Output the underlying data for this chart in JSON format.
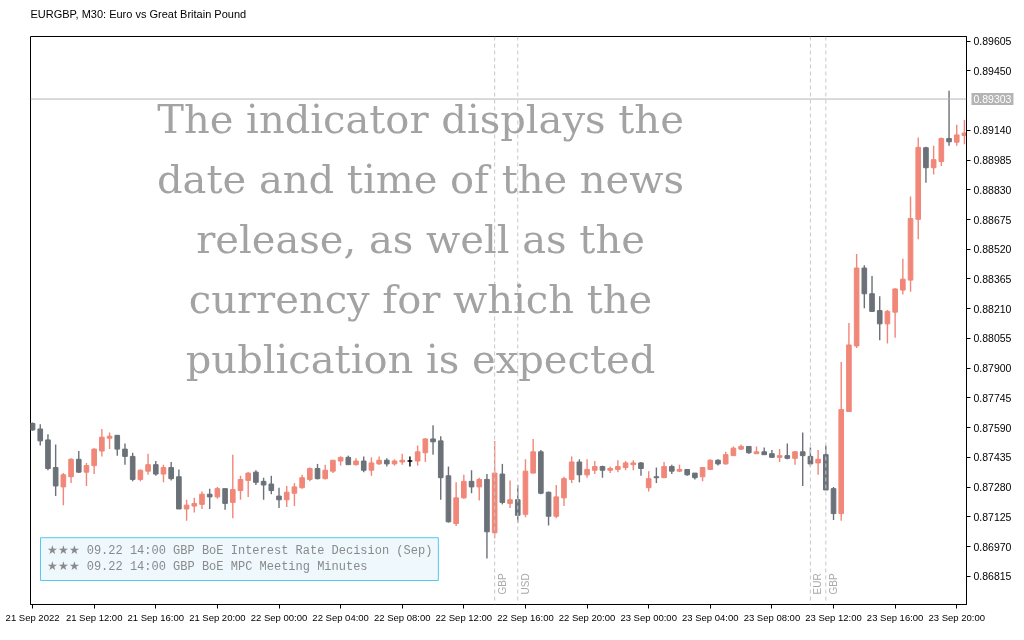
{
  "chart_data": {
    "type": "candlestick",
    "title": "EURGBP, M30: Euro vs Great Britain Pound",
    "annotations": [
      "The indicator displays the date and time of the news release, as well as the currency for which the publication is expected",
      "★★★ 09.22 14:00 GBP BoE Interest Rate Decision (Sep)",
      "★★★ 09.22 14:00 GBP BoE MPC Meeting Minutes"
    ],
    "x": [
      "2022-09-21T08:00",
      "2022-09-21T08:30",
      "2022-09-21T09:00",
      "2022-09-21T09:30",
      "2022-09-21T10:00",
      "2022-09-21T10:30",
      "2022-09-21T11:00",
      "2022-09-21T11:30",
      "2022-09-21T12:00",
      "2022-09-21T12:30",
      "2022-09-21T13:00",
      "2022-09-21T13:30",
      "2022-09-21T14:00",
      "2022-09-21T14:30",
      "2022-09-21T15:00",
      "2022-09-21T15:30",
      "2022-09-21T16:00",
      "2022-09-21T16:30",
      "2022-09-21T17:00",
      "2022-09-21T17:30",
      "2022-09-21T18:00",
      "2022-09-21T18:30",
      "2022-09-21T19:00",
      "2022-09-21T19:30",
      "2022-09-21T20:00",
      "2022-09-21T20:30",
      "2022-09-21T21:00",
      "2022-09-21T21:30",
      "2022-09-21T22:00",
      "2022-09-21T22:30",
      "2022-09-21T23:00",
      "2022-09-21T23:30",
      "2022-09-22T00:00",
      "2022-09-22T00:30",
      "2022-09-22T01:00",
      "2022-09-22T01:30",
      "2022-09-22T02:00",
      "2022-09-22T02:30",
      "2022-09-22T03:00",
      "2022-09-22T03:30",
      "2022-09-22T04:00",
      "2022-09-22T04:30",
      "2022-09-22T05:00",
      "2022-09-22T05:30",
      "2022-09-22T06:00",
      "2022-09-22T06:30",
      "2022-09-22T07:00",
      "2022-09-22T07:30",
      "2022-09-22T08:00",
      "2022-09-22T08:30",
      "2022-09-22T09:00",
      "2022-09-22T09:30",
      "2022-09-22T10:00",
      "2022-09-22T10:30",
      "2022-09-22T11:00",
      "2022-09-22T11:30",
      "2022-09-22T12:00",
      "2022-09-22T12:30",
      "2022-09-22T13:00",
      "2022-09-22T13:30",
      "2022-09-22T14:00",
      "2022-09-22T14:30",
      "2022-09-22T15:00",
      "2022-09-22T15:30",
      "2022-09-22T16:00",
      "2022-09-22T16:30",
      "2022-09-22T17:00",
      "2022-09-22T17:30",
      "2022-09-22T18:00",
      "2022-09-22T18:30",
      "2022-09-22T19:00",
      "2022-09-22T19:30",
      "2022-09-22T20:00",
      "2022-09-22T20:30",
      "2022-09-22T21:00",
      "2022-09-22T21:30",
      "2022-09-22T22:00",
      "2022-09-22T22:30",
      "2022-09-22T23:00",
      "2022-09-22T23:30",
      "2022-09-23T00:00",
      "2022-09-23T00:30",
      "2022-09-23T01:00",
      "2022-09-23T01:30",
      "2022-09-23T02:00",
      "2022-09-23T02:30",
      "2022-09-23T03:00",
      "2022-09-23T03:30",
      "2022-09-23T04:00",
      "2022-09-23T04:30",
      "2022-09-23T05:00",
      "2022-09-23T05:30",
      "2022-09-23T06:00",
      "2022-09-23T06:30",
      "2022-09-23T07:00",
      "2022-09-23T07:30",
      "2022-09-23T08:00",
      "2022-09-23T08:30",
      "2022-09-23T09:00",
      "2022-09-23T09:30",
      "2022-09-23T10:00",
      "2022-09-23T10:30",
      "2022-09-23T11:00",
      "2022-09-23T11:30",
      "2022-09-23T12:00",
      "2022-09-23T12:30",
      "2022-09-23T13:00",
      "2022-09-23T13:30",
      "2022-09-23T14:00",
      "2022-09-23T14:30",
      "2022-09-23T15:00",
      "2022-09-23T15:30",
      "2022-09-23T16:00",
      "2022-09-23T16:30",
      "2022-09-23T17:00",
      "2022-09-23T17:30",
      "2022-09-23T18:00",
      "2022-09-23T18:30",
      "2022-09-23T19:00",
      "2022-09-23T19:30",
      "2022-09-23T20:00",
      "2022-09-23T20:30"
    ],
    "ohlc": [
      [
        0.87612,
        0.87617,
        0.87574,
        0.87578
      ],
      [
        0.87583,
        0.87607,
        0.87497,
        0.87521
      ],
      [
        0.87526,
        0.87555,
        0.87368,
        0.87377
      ],
      [
        0.87382,
        0.87502,
        0.87233,
        0.87286
      ],
      [
        0.87281,
        0.87353,
        0.87186,
        0.87344
      ],
      [
        0.87334,
        0.8743,
        0.87301,
        0.87425
      ],
      [
        0.87425,
        0.87468,
        0.87353,
        0.87358
      ],
      [
        0.87358,
        0.87406,
        0.87286,
        0.87392
      ],
      [
        0.87392,
        0.87483,
        0.87348,
        0.87478
      ],
      [
        0.87468,
        0.87583,
        0.8744,
        0.8754
      ],
      [
        0.87535,
        0.87564,
        0.87478,
        0.87545
      ],
      [
        0.8755,
        0.8755,
        0.87444,
        0.87478
      ],
      [
        0.87478,
        0.87507,
        0.87397,
        0.8744
      ],
      [
        0.8744,
        0.87459,
        0.8731,
        0.8732
      ],
      [
        0.8732,
        0.87372,
        0.8731,
        0.87368
      ],
      [
        0.87363,
        0.87454,
        0.87344,
        0.87397
      ],
      [
        0.87397,
        0.87416,
        0.87339,
        0.87348
      ],
      [
        0.87348,
        0.87397,
        0.87305,
        0.87382
      ],
      [
        0.87382,
        0.87411,
        0.87315,
        0.87324
      ],
      [
        0.87334,
        0.87372,
        0.87166,
        0.87166
      ],
      [
        0.87166,
        0.87214,
        0.87104,
        0.87186
      ],
      [
        0.87181,
        0.87224,
        0.87147,
        0.87195
      ],
      [
        0.8719,
        0.87257,
        0.87166,
        0.87243
      ],
      [
        0.87243,
        0.87272,
        0.87166,
        0.87229
      ],
      [
        0.87229,
        0.87281,
        0.87219,
        0.87272
      ],
      [
        0.87272,
        0.87272,
        0.87162,
        0.87195
      ],
      [
        0.872,
        0.87449,
        0.87118,
        0.87267
      ],
      [
        0.87262,
        0.87339,
        0.87214,
        0.8732
      ],
      [
        0.87315,
        0.87358,
        0.87229,
        0.87353
      ],
      [
        0.87358,
        0.87368,
        0.87291,
        0.87305
      ],
      [
        0.8731,
        0.87329,
        0.87214,
        0.87291
      ],
      [
        0.87296,
        0.87339,
        0.87243,
        0.87262
      ],
      [
        0.87233,
        0.87277,
        0.87171,
        0.87214
      ],
      [
        0.87214,
        0.87286,
        0.87176,
        0.87253
      ],
      [
        0.87248,
        0.87301,
        0.87181,
        0.87281
      ],
      [
        0.87277,
        0.87344,
        0.87272,
        0.87329
      ],
      [
        0.8732,
        0.87382,
        0.8731,
        0.87377
      ],
      [
        0.87377,
        0.87401,
        0.8732,
        0.87324
      ],
      [
        0.87324,
        0.87397,
        0.8732,
        0.87368
      ],
      [
        0.87363,
        0.8742,
        0.87353,
        0.8742
      ],
      [
        0.87416,
        0.8744,
        0.87392,
        0.87435
      ],
      [
        0.87435,
        0.87444,
        0.87397,
        0.87397
      ],
      [
        0.87397,
        0.8743,
        0.87392,
        0.87416
      ],
      [
        0.87416,
        0.8744,
        0.87358,
        0.87368
      ],
      [
        0.87368,
        0.87435,
        0.87339,
        0.87406
      ],
      [
        0.87401,
        0.8744,
        0.87397,
        0.8742
      ],
      [
        0.8742,
        0.8743,
        0.87387,
        0.87401
      ],
      [
        0.87401,
        0.87425,
        0.87392,
        0.87416
      ],
      [
        0.87411,
        0.87454,
        0.87397,
        0.8742
      ],
      [
        0.87416,
        0.8744,
        0.87387,
        0.87416
      ],
      [
        0.87416,
        0.87497,
        0.87392,
        0.87464
      ],
      [
        0.87459,
        0.87535,
        0.87411,
        0.87531
      ],
      [
        0.87531,
        0.87602,
        0.87449,
        0.87516
      ],
      [
        0.87521,
        0.87545,
        0.87214,
        0.87329
      ],
      [
        0.87339,
        0.87387,
        0.87095,
        0.87099
      ],
      [
        0.8709,
        0.87305,
        0.87077,
        0.87224
      ],
      [
        0.87224,
        0.87344,
        0.87219,
        0.8731
      ],
      [
        0.8731,
        0.87368,
        0.87248,
        0.87281
      ],
      [
        0.87281,
        0.87329,
        0.8721,
        0.8732
      ],
      [
        0.8732,
        0.87348,
        0.86908,
        0.87047
      ],
      [
        0.87042,
        0.87521,
        0.87013,
        0.87353
      ],
      [
        0.87348,
        0.87401,
        0.8719,
        0.872
      ],
      [
        0.87195,
        0.87315,
        0.87171,
        0.87214
      ],
      [
        0.87214,
        0.87291,
        0.87095,
        0.87133
      ],
      [
        0.87138,
        0.87425,
        0.87123,
        0.87363
      ],
      [
        0.87353,
        0.87531,
        0.87353,
        0.87464
      ],
      [
        0.87464,
        0.87473,
        0.87243,
        0.87248
      ],
      [
        0.87253,
        0.87257,
        0.8708,
        0.87128
      ],
      [
        0.87128,
        0.87291,
        0.87118,
        0.87229
      ],
      [
        0.87224,
        0.87334,
        0.87181,
        0.87324
      ],
      [
        0.8732,
        0.8744,
        0.87301,
        0.87411
      ],
      [
        0.87411,
        0.87425,
        0.87305,
        0.87344
      ],
      [
        0.87344,
        0.87425,
        0.87329,
        0.87372
      ],
      [
        0.87368,
        0.87416,
        0.87348,
        0.87387
      ],
      [
        0.87387,
        0.87392,
        0.87329,
        0.87368
      ],
      [
        0.87368,
        0.87387,
        0.87353,
        0.87377
      ],
      [
        0.87372,
        0.8742,
        0.87358,
        0.87387
      ],
      [
        0.87382,
        0.87416,
        0.87368,
        0.87406
      ],
      [
        0.87397,
        0.8742,
        0.87368,
        0.87406
      ],
      [
        0.87406,
        0.87411,
        0.87339,
        0.87377
      ],
      [
        0.87277,
        0.87363,
        0.87257,
        0.87324
      ],
      [
        0.87334,
        0.87382,
        0.87301,
        0.87329
      ],
      [
        0.87329,
        0.87411,
        0.87329,
        0.87387
      ],
      [
        0.87387,
        0.87397,
        0.87348,
        0.87363
      ],
      [
        0.87363,
        0.87397,
        0.87358,
        0.87372
      ],
      [
        0.87372,
        0.87372,
        0.87339,
        0.87344
      ],
      [
        0.87353,
        0.87353,
        0.8732,
        0.87329
      ],
      [
        0.87334,
        0.87382,
        0.8731,
        0.87382
      ],
      [
        0.87372,
        0.87425,
        0.87372,
        0.8742
      ],
      [
        0.8742,
        0.87425,
        0.87392,
        0.87401
      ],
      [
        0.87401,
        0.87464,
        0.87397,
        0.87449
      ],
      [
        0.87444,
        0.87492,
        0.87444,
        0.87483
      ],
      [
        0.87478,
        0.87502,
        0.87473,
        0.87492
      ],
      [
        0.87492,
        0.87492,
        0.87454,
        0.87459
      ],
      [
        0.87454,
        0.87492,
        0.87454,
        0.87464
      ],
      [
        0.87464,
        0.87487,
        0.87449,
        0.87449
      ],
      [
        0.87454,
        0.87473,
        0.87435,
        0.87435
      ],
      [
        0.87435,
        0.87478,
        0.87411,
        0.87444
      ],
      [
        0.87444,
        0.87507,
        0.87425,
        0.8743
      ],
      [
        0.8743,
        0.87468,
        0.87397,
        0.87464
      ],
      [
        0.87464,
        0.87564,
        0.87286,
        0.87444
      ],
      [
        0.8744,
        0.87487,
        0.87387,
        0.87401
      ],
      [
        0.87406,
        0.87473,
        0.87344,
        0.87425
      ],
      [
        0.87449,
        0.87497,
        0.87265,
        0.87265
      ],
      [
        0.87272,
        0.87281,
        0.87109,
        0.87142
      ],
      [
        0.87142,
        0.87932,
        0.87104,
        0.87684
      ],
      [
        0.87674,
        0.88136,
        0.87674,
        0.88021
      ],
      [
        0.88016,
        0.88495,
        0.88005,
        0.88422
      ],
      [
        0.88422,
        0.88437,
        0.88212,
        0.88288
      ],
      [
        0.88288,
        0.8838,
        0.88193,
        0.88196
      ],
      [
        0.882,
        0.88275,
        0.88045,
        0.88131
      ],
      [
        0.88131,
        0.88203,
        0.88029,
        0.88196
      ],
      [
        0.88192,
        0.88316,
        0.88059,
        0.88313
      ],
      [
        0.88307,
        0.88471,
        0.88284,
        0.88364
      ],
      [
        0.88359,
        0.88795,
        0.88299,
        0.8868
      ],
      [
        0.88676,
        0.89102,
        0.88572,
        0.89051
      ],
      [
        0.89049,
        0.89054,
        0.88867,
        0.88945
      ],
      [
        0.88945,
        0.89059,
        0.8891,
        0.88987
      ],
      [
        0.88977,
        0.89102,
        0.88954,
        0.89097
      ],
      [
        0.89097,
        0.89346,
        0.89059,
        0.8908
      ],
      [
        0.89078,
        0.89169,
        0.89059,
        0.89116
      ],
      [
        0.89113,
        0.89194,
        0.89067,
        0.89126
      ]
    ],
    "colors": [
      "#6b7178",
      "#6b7178",
      "#6b7178",
      "#6b7178",
      "#f08778",
      "#f08778",
      "#6b7178",
      "#f08778",
      "#f08778",
      "#f08778",
      "#f08778",
      "#6b7178",
      "#6b7178",
      "#6b7178",
      "#f08778",
      "#f08778",
      "#6b7178",
      "#f08778",
      "#6b7178",
      "#6b7178",
      "#f08778",
      "#f08778",
      "#f08778",
      "#6b7178",
      "#f08778",
      "#6b7178",
      "#f08778",
      "#f08778",
      "#f08778",
      "#6b7178",
      "#6b7178",
      "#6b7178",
      "#6b7178",
      "#f08778",
      "#f08778",
      "#f08778",
      "#f08778",
      "#6b7178",
      "#f08778",
      "#f08778",
      "#f08778",
      "#6b7178",
      "#f08778",
      "#6b7178",
      "#f08778",
      "#f08778",
      "#6b7178",
      "#f08778",
      "#f08778",
      "#000000",
      "#f08778",
      "#f08778",
      "#6b7178",
      "#6b7178",
      "#6b7178",
      "#f08778",
      "#f08778",
      "#6b7178",
      "#f08778",
      "#6b7178",
      "#f08778",
      "#6b7178",
      "#f08778",
      "#6b7178",
      "#f08778",
      "#f08778",
      "#6b7178",
      "#6b7178",
      "#f08778",
      "#f08778",
      "#f08778",
      "#6b7178",
      "#f08778",
      "#f08778",
      "#6b7178",
      "#f08778",
      "#f08778",
      "#f08778",
      "#f08778",
      "#6b7178",
      "#f08778",
      "#6b7178",
      "#f08778",
      "#6b7178",
      "#f08778",
      "#6b7178",
      "#6b7178",
      "#f08778",
      "#f08778",
      "#6b7178",
      "#f08778",
      "#f08778",
      "#f08778",
      "#6b7178",
      "#f08778",
      "#6b7178",
      "#6b7178",
      "#f08778",
      "#6b7178",
      "#f08778",
      "#6b7178",
      "#6b7178",
      "#f08778",
      "#6b7178",
      "#6b7178",
      "#f08778",
      "#f08778",
      "#f08778",
      "#6b7178",
      "#6b7178",
      "#6b7178",
      "#f08778",
      "#f08778",
      "#f08778",
      "#f08778",
      "#f08778",
      "#6b7178",
      "#f08778",
      "#f08778",
      "#6b7178",
      "#f08778",
      "#f08778"
    ],
    "xlim": [
      "2022-09-21T07:52",
      "2022-09-23T20:38"
    ],
    "ylim": [
      0.86668,
      0.89629
    ],
    "xticks": [
      {
        "value": "2022-09-21T08:00",
        "label": "21 Sep 2022"
      },
      {
        "value": "2022-09-21T12:00",
        "label": "21 Sep 12:00"
      },
      {
        "value": "2022-09-21T16:00",
        "label": "21 Sep 16:00"
      },
      {
        "value": "2022-09-21T20:00",
        "label": "21 Sep 20:00"
      },
      {
        "value": "2022-09-22T00:00",
        "label": "22 Sep 00:00"
      },
      {
        "value": "2022-09-22T04:00",
        "label": "22 Sep 04:00"
      },
      {
        "value": "2022-09-22T08:00",
        "label": "22 Sep 08:00"
      },
      {
        "value": "2022-09-22T12:00",
        "label": "22 Sep 12:00"
      },
      {
        "value": "2022-09-22T16:00",
        "label": "22 Sep 16:00"
      },
      {
        "value": "2022-09-22T20:00",
        "label": "22 Sep 20:00"
      },
      {
        "value": "2022-09-23T00:00",
        "label": "23 Sep 00:00"
      },
      {
        "value": "2022-09-23T04:00",
        "label": "23 Sep 04:00"
      },
      {
        "value": "2022-09-23T08:00",
        "label": "23 Sep 08:00"
      },
      {
        "value": "2022-09-23T12:00",
        "label": "23 Sep 12:00"
      },
      {
        "value": "2022-09-23T16:00",
        "label": "23 Sep 16:00"
      },
      {
        "value": "2022-09-23T20:00",
        "label": "23 Sep 20:00"
      }
    ],
    "yticks": [
      0.86815,
      {
        "value": 0.8697,
        "label": "0.86970"
      },
      0.87125,
      {
        "value": 0.8728,
        "label": "0.87280"
      },
      0.87435,
      {
        "value": 0.8759,
        "label": "0.87590"
      },
      0.87745,
      {
        "value": 0.879,
        "label": "0.87900"
      },
      0.88055,
      {
        "value": 0.8821,
        "label": "0.88210"
      },
      0.88365,
      {
        "value": 0.8852,
        "label": "0.88520"
      },
      0.88675,
      {
        "value": 0.8883,
        "label": "0.88830"
      },
      0.88985,
      {
        "value": 0.8914,
        "label": "0.89140"
      },
      {
        "value": 0.8945,
        "label": "0.89450"
      },
      0.89605
    ],
    "ref_lines": [
      {
        "axis": "y",
        "value": 0.89303,
        "label": "0.89303",
        "color": "#b4b4b4",
        "line_style": "solid"
      },
      {
        "axis": "x",
        "value": "2022-09-22T14:00",
        "label": "GBP",
        "color": "#c8c8c8",
        "line_style": "dashed"
      },
      {
        "axis": "x",
        "value": "2022-09-22T15:30",
        "label": "USD",
        "color": "#c8c8c8",
        "line_style": "dashed"
      },
      {
        "axis": "x",
        "value": "2022-09-23T10:30",
        "label": "EUR",
        "color": "#c8c8c8",
        "line_style": "dashed"
      },
      {
        "axis": "x",
        "value": "2022-09-23T11:30",
        "label": "GBP",
        "color": "#c8c8c8",
        "line_style": "dashed"
      }
    ]
  }
}
